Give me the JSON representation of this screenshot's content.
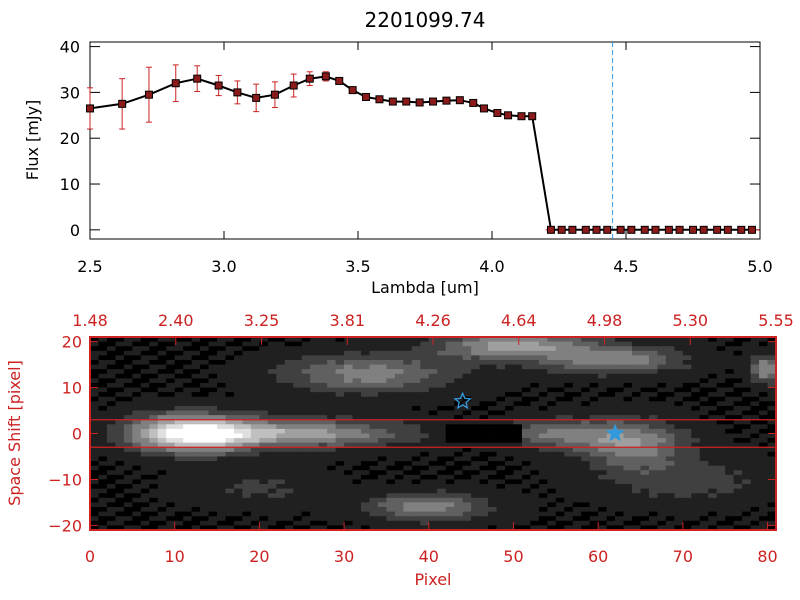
{
  "chart_data": [
    {
      "type": "line",
      "title": "2201099.74",
      "xlabel": "Lambda [um]",
      "ylabel": "Flux [mJy]",
      "xlim": [
        2.5,
        5.0
      ],
      "ylim": [
        -2,
        41
      ],
      "x_ticks": [
        "2.5",
        "3.0",
        "3.5",
        "4.0",
        "4.5",
        "5.0"
      ],
      "x_tick_values": [
        2.5,
        3.0,
        3.5,
        4.0,
        4.5,
        5.0
      ],
      "y_ticks": [
        "0",
        "10",
        "20",
        "30",
        "40"
      ],
      "y_tick_values": [
        0,
        10,
        20,
        30,
        40
      ],
      "grid": false,
      "vline": 4.45,
      "series": [
        {
          "x": [
            2.5,
            2.62,
            2.72,
            2.82,
            2.9,
            2.98,
            3.05,
            3.12,
            3.19,
            3.26,
            3.32,
            3.38,
            3.43,
            3.48,
            3.53,
            3.58,
            3.63,
            3.68,
            3.73,
            3.78,
            3.83,
            3.88,
            3.93,
            3.97,
            4.02,
            4.06,
            4.11,
            4.15,
            4.22,
            4.26,
            4.3,
            4.35,
            4.39,
            4.43,
            4.48,
            4.52,
            4.57,
            4.61,
            4.66,
            4.7,
            4.75,
            4.79,
            4.84,
            4.88,
            4.93,
            4.97
          ],
          "y": [
            26.5,
            27.5,
            29.5,
            32,
            33,
            31.5,
            30,
            28.8,
            29.5,
            31.5,
            33,
            33.5,
            32.5,
            30.5,
            29,
            28.5,
            28,
            28,
            27.8,
            28,
            28.2,
            28.3,
            27.7,
            26.5,
            25.5,
            25,
            24.8,
            24.8,
            0,
            0,
            0,
            0,
            0,
            0,
            0,
            0,
            0,
            0,
            0,
            0,
            0,
            0,
            0,
            0,
            0,
            0
          ],
          "err": [
            4.5,
            5.5,
            6,
            4,
            2.8,
            2.2,
            2.5,
            3,
            2.8,
            2.5,
            1.5,
            1,
            0,
            0,
            0,
            0,
            0,
            0,
            0,
            0,
            0,
            0,
            0,
            0,
            0,
            0,
            0,
            0,
            0,
            0,
            0,
            0,
            0,
            0,
            0,
            0,
            0,
            0,
            0,
            0,
            0,
            0,
            0,
            0,
            0,
            0
          ]
        }
      ]
    },
    {
      "type": "heatmap",
      "xlabel": "Pixel",
      "ylabel": "Space Shift [pixel]",
      "xlim": [
        0,
        81
      ],
      "ylim": [
        -21,
        21
      ],
      "x_ticks": [
        "0",
        "10",
        "20",
        "30",
        "40",
        "50",
        "60",
        "70",
        "80"
      ],
      "x_tick_values": [
        0,
        10,
        20,
        30,
        40,
        50,
        60,
        70,
        80
      ],
      "top_ticks": [
        "1.48",
        "2.40",
        "3.25",
        "3.81",
        "4.26",
        "4.64",
        "4.98",
        "5.30",
        "5.55"
      ],
      "y_ticks": [
        "20",
        "10",
        "0",
        "−10",
        "−20"
      ],
      "y_tick_values": [
        20,
        10,
        0,
        -10,
        -20
      ],
      "hlines": [
        3,
        -3
      ],
      "markers": [
        {
          "name": "open-star",
          "x": 44,
          "y": 7
        },
        {
          "name": "filled-star",
          "x": 62,
          "y": 0
        }
      ],
      "blobs": [
        {
          "x": 12,
          "y": 0,
          "sx": 7,
          "sy": 4,
          "v": 0.95
        },
        {
          "x": 25,
          "y": 0,
          "sx": 12,
          "sy": 3,
          "v": 0.55
        },
        {
          "x": 55,
          "y": 0,
          "sx": 6,
          "sy": 3,
          "v": 0.4
        },
        {
          "x": 64,
          "y": -2,
          "sx": 6,
          "sy": 5,
          "v": 0.5
        },
        {
          "x": 33,
          "y": 13,
          "sx": 10,
          "sy": 4,
          "v": 0.45
        },
        {
          "x": 50,
          "y": 19,
          "sx": 9,
          "sy": 3,
          "v": 0.55
        },
        {
          "x": 62,
          "y": 16,
          "sx": 8,
          "sy": 3,
          "v": 0.45
        },
        {
          "x": 80,
          "y": 14,
          "sx": 2,
          "sy": 3,
          "v": 0.5
        },
        {
          "x": 40,
          "y": -16,
          "sx": 7,
          "sy": 3,
          "v": 0.45
        },
        {
          "x": 20,
          "y": -12,
          "sx": 8,
          "sy": 4,
          "v": 0.15
        },
        {
          "x": 70,
          "y": -10,
          "sx": 10,
          "sy": 5,
          "v": 0.2
        }
      ]
    }
  ]
}
